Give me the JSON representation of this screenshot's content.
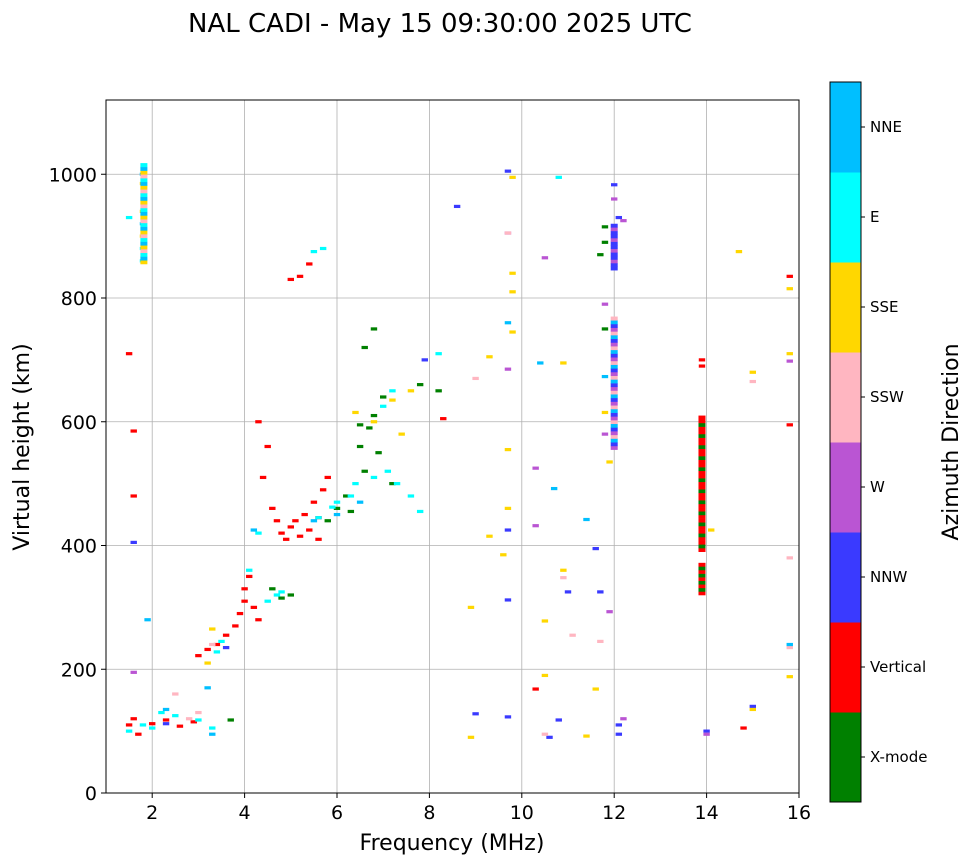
{
  "chart_data": {
    "type": "scatter",
    "title": "NAL CADI - May 15 09:30:00 2025 UTC",
    "xlabel": "Frequency (MHz)",
    "ylabel": "Virtual height (km)",
    "xlim": [
      1,
      16
    ],
    "ylim": [
      0,
      1120
    ],
    "xticks": [
      2,
      4,
      6,
      8,
      10,
      12,
      14,
      16
    ],
    "yticks": [
      0,
      200,
      400,
      600,
      800,
      1000
    ],
    "grid": true,
    "colorbar": {
      "label": "Azimuth Direction",
      "position": "right",
      "categories": [
        {
          "name": "X-mode",
          "color": "#008000"
        },
        {
          "name": "Vertical",
          "color": "#ff0000"
        },
        {
          "name": "NNW",
          "color": "#3a3aff"
        },
        {
          "name": "W",
          "color": "#ba55d3"
        },
        {
          "name": "SSW",
          "color": "#ffb6c1"
        },
        {
          "name": "SSE",
          "color": "#ffd700"
        },
        {
          "name": "E",
          "color": "#00ffff"
        },
        {
          "name": "NNE",
          "color": "#00bfff"
        }
      ]
    },
    "series": [
      {
        "name": "Vertical",
        "color": "#ff0000",
        "points": [
          [
            1.5,
            110
          ],
          [
            1.6,
            120
          ],
          [
            1.7,
            95
          ],
          [
            2.0,
            112
          ],
          [
            2.3,
            118
          ],
          [
            2.6,
            108
          ],
          [
            2.9,
            115
          ],
          [
            3.0,
            222
          ],
          [
            3.2,
            232
          ],
          [
            3.4,
            240
          ],
          [
            3.6,
            255
          ],
          [
            3.8,
            270
          ],
          [
            3.9,
            290
          ],
          [
            4.0,
            310
          ],
          [
            4.0,
            330
          ],
          [
            4.1,
            350
          ],
          [
            4.2,
            300
          ],
          [
            4.3,
            280
          ],
          [
            4.4,
            510
          ],
          [
            4.6,
            460
          ],
          [
            4.7,
            440
          ],
          [
            4.8,
            420
          ],
          [
            4.9,
            410
          ],
          [
            5.0,
            430
          ],
          [
            5.1,
            440
          ],
          [
            5.2,
            415
          ],
          [
            5.3,
            450
          ],
          [
            5.4,
            425
          ],
          [
            5.5,
            470
          ],
          [
            5.6,
            445
          ],
          [
            5.7,
            490
          ],
          [
            5.8,
            510
          ],
          [
            4.3,
            600
          ],
          [
            4.5,
            560
          ],
          [
            5.0,
            830
          ],
          [
            5.2,
            835
          ],
          [
            5.4,
            855
          ],
          [
            5.6,
            410
          ],
          [
            1.5,
            710
          ],
          [
            1.6,
            585
          ],
          [
            1.6,
            480
          ],
          [
            8.3,
            605
          ],
          [
            10.3,
            168
          ],
          [
            14.8,
            105
          ],
          [
            15.8,
            835
          ],
          [
            15.8,
            595
          ],
          [
            13.9,
            700
          ],
          [
            13.9,
            690
          ]
        ]
      },
      {
        "name": "X-mode",
        "color": "#008000",
        "points": [
          [
            3.7,
            118
          ],
          [
            4.6,
            330
          ],
          [
            4.8,
            315
          ],
          [
            5.0,
            320
          ],
          [
            5.8,
            440
          ],
          [
            6.0,
            460
          ],
          [
            6.2,
            480
          ],
          [
            6.3,
            455
          ],
          [
            6.5,
            560
          ],
          [
            6.6,
            520
          ],
          [
            6.7,
            590
          ],
          [
            6.8,
            610
          ],
          [
            6.9,
            550
          ],
          [
            7.0,
            640
          ],
          [
            7.2,
            500
          ],
          [
            6.6,
            720
          ],
          [
            6.8,
            750
          ],
          [
            6.5,
            595
          ],
          [
            7.8,
            660
          ],
          [
            8.2,
            650
          ],
          [
            11.8,
            915
          ],
          [
            11.8,
            890
          ],
          [
            11.8,
            750
          ],
          [
            11.7,
            870
          ]
        ]
      },
      {
        "name": "NNW",
        "color": "#3a3aff",
        "points": [
          [
            1.6,
            405
          ],
          [
            2.3,
            112
          ],
          [
            3.6,
            235
          ],
          [
            8.6,
            948
          ],
          [
            9.0,
            128
          ],
          [
            9.7,
            123
          ],
          [
            9.7,
            425
          ],
          [
            9.7,
            312
          ],
          [
            9.7,
            1005
          ],
          [
            11.0,
            325
          ],
          [
            11.6,
            395
          ],
          [
            11.7,
            325
          ],
          [
            12.0,
            855
          ],
          [
            12.0,
            848
          ],
          [
            12.0,
            983
          ],
          [
            12.1,
            930
          ],
          [
            12.1,
            110
          ],
          [
            12.1,
            95
          ],
          [
            10.6,
            90
          ],
          [
            10.8,
            118
          ],
          [
            7.9,
            700
          ],
          [
            14.0,
            100
          ],
          [
            15.0,
            140
          ]
        ]
      },
      {
        "name": "W",
        "color": "#ba55d3",
        "points": [
          [
            1.6,
            195
          ],
          [
            9.7,
            685
          ],
          [
            10.3,
            525
          ],
          [
            10.3,
            432
          ],
          [
            11.8,
            580
          ],
          [
            11.8,
            790
          ],
          [
            12.2,
            925
          ],
          [
            11.9,
            293
          ],
          [
            12.2,
            120
          ],
          [
            9.7,
            905
          ],
          [
            15.8,
            698
          ],
          [
            14.0,
            95
          ],
          [
            10.5,
            865
          ],
          [
            12.0,
            960
          ]
        ]
      },
      {
        "name": "SSW",
        "color": "#ffb6c1",
        "points": [
          [
            2.5,
            160
          ],
          [
            2.8,
            120
          ],
          [
            3.0,
            130
          ],
          [
            3.3,
            240
          ],
          [
            9.7,
            905
          ],
          [
            10.9,
            348
          ],
          [
            10.5,
            95
          ],
          [
            11.1,
            255
          ],
          [
            11.7,
            245
          ],
          [
            15.0,
            665
          ],
          [
            15.8,
            380
          ],
          [
            15.8,
            235
          ],
          [
            9.0,
            670
          ]
        ]
      },
      {
        "name": "SSE",
        "color": "#ffd700",
        "points": [
          [
            1.8,
            985
          ],
          [
            1.8,
            940
          ],
          [
            1.8,
            900
          ],
          [
            3.3,
            265
          ],
          [
            3.2,
            210
          ],
          [
            6.4,
            615
          ],
          [
            6.8,
            600
          ],
          [
            7.2,
            635
          ],
          [
            7.4,
            580
          ],
          [
            7.6,
            650
          ],
          [
            8.9,
            300
          ],
          [
            8.9,
            90
          ],
          [
            9.3,
            415
          ],
          [
            9.3,
            705
          ],
          [
            9.6,
            385
          ],
          [
            9.7,
            555
          ],
          [
            9.7,
            460
          ],
          [
            9.8,
            840
          ],
          [
            9.8,
            810
          ],
          [
            9.8,
            745
          ],
          [
            9.8,
            995
          ],
          [
            10.5,
            278
          ],
          [
            10.5,
            190
          ],
          [
            10.9,
            360
          ],
          [
            10.9,
            695
          ],
          [
            11.4,
            92
          ],
          [
            11.6,
            168
          ],
          [
            11.8,
            615
          ],
          [
            11.9,
            535
          ],
          [
            14.1,
            425
          ],
          [
            14.7,
            875
          ],
          [
            15.0,
            135
          ],
          [
            15.0,
            680
          ],
          [
            15.8,
            710
          ],
          [
            15.8,
            815
          ],
          [
            15.8,
            188
          ]
        ]
      },
      {
        "name": "E",
        "color": "#00ffff",
        "points": [
          [
            1.5,
            100
          ],
          [
            1.8,
            110
          ],
          [
            2.0,
            105
          ],
          [
            2.2,
            130
          ],
          [
            2.5,
            125
          ],
          [
            3.0,
            118
          ],
          [
            3.3,
            105
          ],
          [
            3.4,
            228
          ],
          [
            3.5,
            245
          ],
          [
            4.5,
            310
          ],
          [
            4.7,
            320
          ],
          [
            4.8,
            325
          ],
          [
            4.1,
            360
          ],
          [
            4.3,
            420
          ],
          [
            5.6,
            445
          ],
          [
            5.9,
            462
          ],
          [
            6.0,
            470
          ],
          [
            6.3,
            480
          ],
          [
            6.4,
            500
          ],
          [
            6.8,
            510
          ],
          [
            7.1,
            520
          ],
          [
            7.3,
            500
          ],
          [
            7.0,
            625
          ],
          [
            7.2,
            650
          ],
          [
            7.6,
            480
          ],
          [
            7.8,
            455
          ],
          [
            8.2,
            710
          ],
          [
            5.7,
            880
          ],
          [
            5.5,
            875
          ],
          [
            1.8,
            880
          ],
          [
            1.8,
            860
          ],
          [
            1.5,
            930
          ],
          [
            10.8,
            995
          ]
        ]
      },
      {
        "name": "NNE",
        "color": "#00bfff",
        "points": [
          [
            1.8,
            1000
          ],
          [
            1.8,
            920
          ],
          [
            2.3,
            135
          ],
          [
            3.2,
            170
          ],
          [
            3.3,
            95
          ],
          [
            4.2,
            425
          ],
          [
            5.5,
            440
          ],
          [
            6.0,
            450
          ],
          [
            6.5,
            470
          ],
          [
            9.7,
            760
          ],
          [
            10.4,
            695
          ],
          [
            10.7,
            492
          ],
          [
            11.4,
            442
          ],
          [
            11.8,
            673
          ],
          [
            12.0,
            750
          ],
          [
            15.8,
            240
          ],
          [
            1.9,
            280
          ]
        ]
      }
    ],
    "columns": [
      {
        "x": 1.82,
        "y0": 855,
        "y1": 1018,
        "colors": [
          "#ffd700",
          "#00bfff",
          "#00ffff",
          "#ffb6c1"
        ]
      },
      {
        "x": 12.0,
        "y0": 555,
        "y1": 770,
        "colors": [
          "#ba55d3",
          "#3a3aff",
          "#00bfff",
          "#ffb6c1"
        ]
      },
      {
        "x": 12.0,
        "y0": 845,
        "y1": 920,
        "colors": [
          "#3a3aff",
          "#3a3aff",
          "#ba55d3"
        ]
      },
      {
        "x": 13.9,
        "y0": 390,
        "y1": 610,
        "colors": [
          "#ff0000",
          "#008000",
          "#ff0000"
        ]
      },
      {
        "x": 13.9,
        "y0": 320,
        "y1": 372,
        "colors": [
          "#ff0000",
          "#008000"
        ]
      }
    ]
  }
}
